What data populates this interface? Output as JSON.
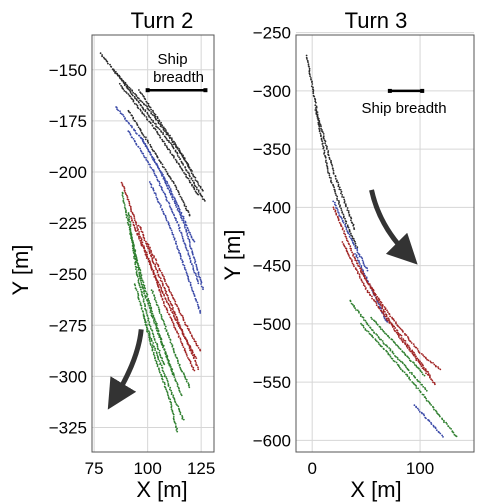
{
  "chart_data": [
    {
      "type": "scatter",
      "title": "Turn 2",
      "xlabel": "X [m]",
      "ylabel": "Y [m]",
      "xlim": [
        74,
        131
      ],
      "ylim": [
        -337,
        -133
      ],
      "xticks": [
        75,
        100,
        125
      ],
      "yticks": [
        -150,
        -175,
        -200,
        -225,
        -250,
        -275,
        -300,
        -325
      ],
      "grid": true,
      "annotation": {
        "text_lines": [
          "Ship",
          "breadth"
        ],
        "bar_x": [
          100,
          127
        ],
        "bar_y": -160
      },
      "arrow": {
        "shape": "curved",
        "from": [
          97,
          -277
        ],
        "to": [
          85,
          -310
        ]
      },
      "series": [
        {
          "color": "#2b2b2b",
          "tracks": [
            [
              [
                78,
                -142
              ],
              [
                95,
                -165
              ],
              [
                112,
                -188
              ],
              [
                127,
                -215
              ]
            ],
            [
              [
                84,
                -150
              ],
              [
                101,
                -170
              ],
              [
                115,
                -190
              ],
              [
                126,
                -210
              ]
            ],
            [
              [
                87,
                -157
              ],
              [
                102,
                -177
              ],
              [
                115,
                -197
              ],
              [
                124,
                -212
              ]
            ],
            [
              [
                96,
                -160
              ],
              [
                106,
                -176
              ],
              [
                114,
                -188
              ],
              [
                121,
                -200
              ]
            ],
            [
              [
                91,
                -170
              ],
              [
                103,
                -190
              ],
              [
                113,
                -207
              ],
              [
                120,
                -222
              ]
            ]
          ]
        },
        {
          "color": "#3b4aa8",
          "tracks": [
            [
              [
                85,
                -168
              ],
              [
                98,
                -185
              ],
              [
                110,
                -207
              ],
              [
                122,
                -235
              ]
            ],
            [
              [
                91,
                -180
              ],
              [
                103,
                -200
              ],
              [
                114,
                -225
              ],
              [
                124,
                -255
              ]
            ],
            [
              [
                97,
                -183
              ],
              [
                107,
                -202
              ],
              [
                117,
                -225
              ],
              [
                126,
                -258
              ]
            ],
            [
              [
                101,
                -205
              ],
              [
                111,
                -228
              ],
              [
                119,
                -252
              ],
              [
                125,
                -270
              ]
            ]
          ]
        },
        {
          "color": "#a02424",
          "tracks": [
            [
              [
                88,
                -205
              ],
              [
                97,
                -233
              ],
              [
                108,
                -265
              ],
              [
                122,
                -298
              ]
            ],
            [
              [
                92,
                -222
              ],
              [
                101,
                -245
              ],
              [
                112,
                -270
              ],
              [
                123,
                -292
              ]
            ],
            [
              [
                96,
                -226
              ],
              [
                105,
                -250
              ],
              [
                115,
                -275
              ],
              [
                124,
                -297
              ]
            ],
            [
              [
                100,
                -235
              ],
              [
                109,
                -255
              ],
              [
                118,
                -275
              ],
              [
                125,
                -288
              ]
            ]
          ]
        },
        {
          "color": "#2f7f2f",
          "tracks": [
            [
              [
                88,
                -210
              ],
              [
                92,
                -230
              ],
              [
                98,
                -255
              ],
              [
                112,
                -300
              ]
            ],
            [
              [
                91,
                -220
              ],
              [
                95,
                -250
              ],
              [
                101,
                -275
              ],
              [
                108,
                -295
              ]
            ],
            [
              [
                92,
                -230
              ],
              [
                98,
                -258
              ],
              [
                106,
                -282
              ],
              [
                116,
                -310
              ]
            ],
            [
              [
                94,
                -255
              ],
              [
                101,
                -280
              ],
              [
                110,
                -305
              ],
              [
                117,
                -322
              ]
            ],
            [
              [
                98,
                -270
              ],
              [
                103,
                -290
              ],
              [
                110,
                -310
              ],
              [
                114,
                -328
              ]
            ],
            [
              [
                102,
                -258
              ],
              [
                109,
                -278
              ],
              [
                115,
                -295
              ],
              [
                120,
                -306
              ]
            ]
          ]
        }
      ]
    },
    {
      "type": "scatter",
      "title": "Turn 3",
      "xlabel": "X [m]",
      "ylabel": "Y [m]",
      "xlim": [
        -15,
        150
      ],
      "ylim": [
        -610,
        -252
      ],
      "xticks": [
        0,
        100
      ],
      "yticks": [
        -250,
        -300,
        -350,
        -400,
        -450,
        -500,
        -550,
        -600
      ],
      "grid": true,
      "annotation": {
        "text_lines": [
          "Ship breadth"
        ],
        "bar_x": [
          72,
          102
        ],
        "bar_y": -300
      },
      "arrow": {
        "shape": "curved",
        "from": [
          55,
          -385
        ],
        "to": [
          88,
          -440
        ]
      },
      "series": [
        {
          "color": "#2b2b2b",
          "tracks": [
            [
              [
                -5,
                -270
              ],
              [
                5,
                -320
              ],
              [
                20,
                -370
              ],
              [
                40,
                -420
              ]
            ],
            [
              [
                3,
                -315
              ],
              [
                15,
                -370
              ],
              [
                30,
                -410
              ],
              [
                42,
                -435
              ]
            ]
          ]
        },
        {
          "color": "#3b4aa8",
          "tracks": [
            [
              [
                20,
                -395
              ],
              [
                35,
                -425
              ],
              [
                52,
                -455
              ]
            ],
            [
              [
                40,
                -440
              ],
              [
                55,
                -470
              ],
              [
                70,
                -500
              ]
            ],
            [
              [
                95,
                -570
              ],
              [
                115,
                -590
              ],
              [
                122,
                -598
              ]
            ]
          ]
        },
        {
          "color": "#a02424",
          "tracks": [
            [
              [
                20,
                -400
              ],
              [
                40,
                -445
              ],
              [
                70,
                -495
              ],
              [
                110,
                -545
              ]
            ],
            [
              [
                28,
                -430
              ],
              [
                50,
                -470
              ],
              [
                80,
                -510
              ],
              [
                115,
                -553
              ]
            ],
            [
              [
                45,
                -455
              ],
              [
                70,
                -490
              ],
              [
                100,
                -525
              ],
              [
                120,
                -540
              ]
            ]
          ]
        },
        {
          "color": "#2f7f2f",
          "tracks": [
            [
              [
                35,
                -480
              ],
              [
                55,
                -505
              ],
              [
                80,
                -530
              ],
              [
                107,
                -558
              ]
            ],
            [
              [
                45,
                -500
              ],
              [
                70,
                -525
              ],
              [
                100,
                -558
              ],
              [
                135,
                -598
              ]
            ],
            [
              [
                55,
                -495
              ],
              [
                80,
                -520
              ],
              [
                105,
                -545
              ]
            ]
          ]
        }
      ]
    }
  ]
}
